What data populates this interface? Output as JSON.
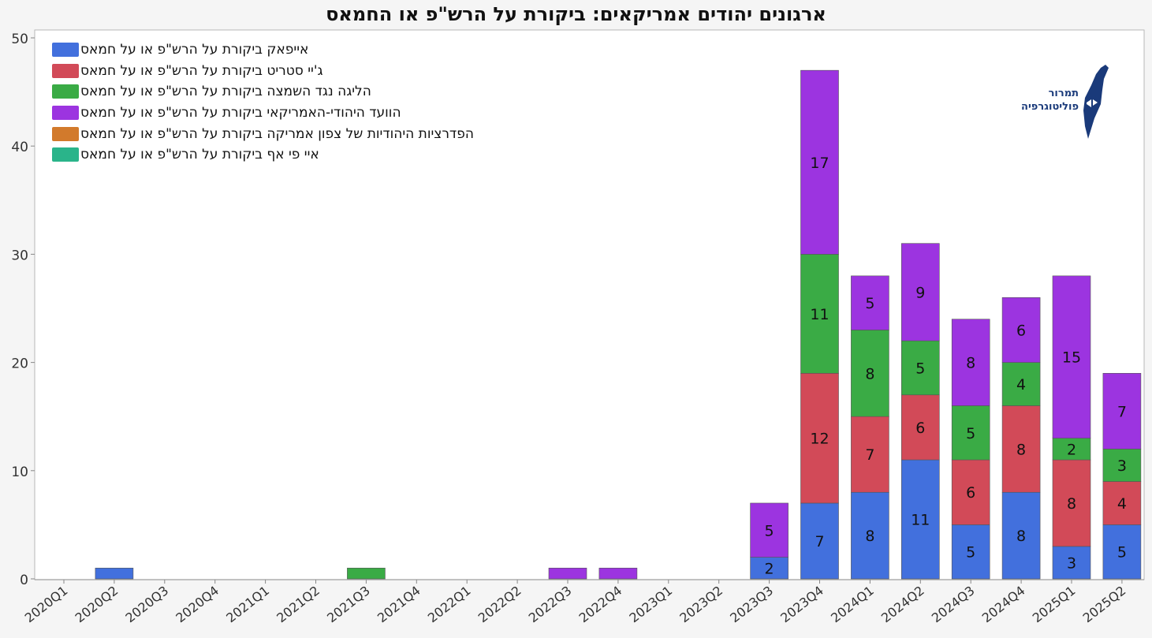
{
  "chart_data": {
    "type": "bar",
    "stacked": true,
    "title": "ארגונים יהודים אמריקאים: ביקורת על הרש\"פ או החמאס",
    "ylim": [
      0,
      50
    ],
    "yticks": [
      0,
      10,
      20,
      30,
      40,
      50
    ],
    "ylabel": "",
    "xlabel": "",
    "grid": false,
    "legend_position": "top-left",
    "categories": [
      "2020Q1",
      "2020Q2",
      "2020Q3",
      "2020Q4",
      "2021Q1",
      "2021Q2",
      "2021Q3",
      "2021Q4",
      "2022Q1",
      "2022Q2",
      "2022Q3",
      "2022Q4",
      "2023Q1",
      "2023Q2",
      "2023Q3",
      "2023Q4",
      "2024Q1",
      "2024Q2",
      "2024Q3",
      "2024Q4",
      "2025Q1",
      "2025Q2"
    ],
    "series": [
      {
        "name": "אייפאק ביקורת על הרש\"פ או על חמאס",
        "color": "#4270dd",
        "values": [
          0,
          1,
          0,
          0,
          0,
          0,
          0,
          0,
          0,
          0,
          0,
          0,
          0,
          0,
          2,
          7,
          8,
          11,
          5,
          8,
          3,
          5
        ]
      },
      {
        "name": "ג'יי סטריט ביקורת על הרש\"פ או על חמאס",
        "color": "#d24a58",
        "values": [
          0,
          0,
          0,
          0,
          0,
          0,
          0,
          0,
          0,
          0,
          0,
          0,
          0,
          0,
          0,
          12,
          7,
          6,
          6,
          8,
          8,
          4
        ]
      },
      {
        "name": "הליגה נגד השמצה ביקורת על הרש\"פ או על חמאס",
        "color": "#3aab45",
        "values": [
          0,
          0,
          0,
          0,
          0,
          0,
          1,
          0,
          0,
          0,
          0,
          0,
          0,
          0,
          0,
          11,
          8,
          5,
          5,
          4,
          2,
          3
        ]
      },
      {
        "name": "הוועד היהודי-האמריקאי ביקורת על הרש\"פ או על חמאס",
        "color": "#9c34e0",
        "values": [
          0,
          0,
          0,
          0,
          0,
          0,
          0,
          0,
          0,
          0,
          1,
          1,
          0,
          0,
          5,
          17,
          5,
          9,
          8,
          6,
          15,
          7
        ]
      },
      {
        "name": "הפדרציות היהודיות של צפון אמריקה ביקורת על הרש\"פ או על חמאס",
        "color": "#d27a2c",
        "values": [
          0,
          0,
          0,
          0,
          0,
          0,
          0,
          0,
          0,
          0,
          0,
          0,
          0,
          0,
          0,
          0,
          0,
          0,
          0,
          0,
          0,
          0
        ]
      },
      {
        "name": "איי פי אף  ביקורת על הרש\"פ או על חמאס",
        "color": "#2ab48a",
        "values": [
          0,
          0,
          0,
          0,
          0,
          0,
          0,
          0,
          0,
          0,
          0,
          0,
          0,
          0,
          0,
          0,
          0,
          0,
          0,
          0,
          0,
          0
        ]
      }
    ]
  },
  "logo": {
    "line1": "תמרור",
    "line2": "פוליטוגרפיה",
    "color": "#1a3a7a"
  }
}
